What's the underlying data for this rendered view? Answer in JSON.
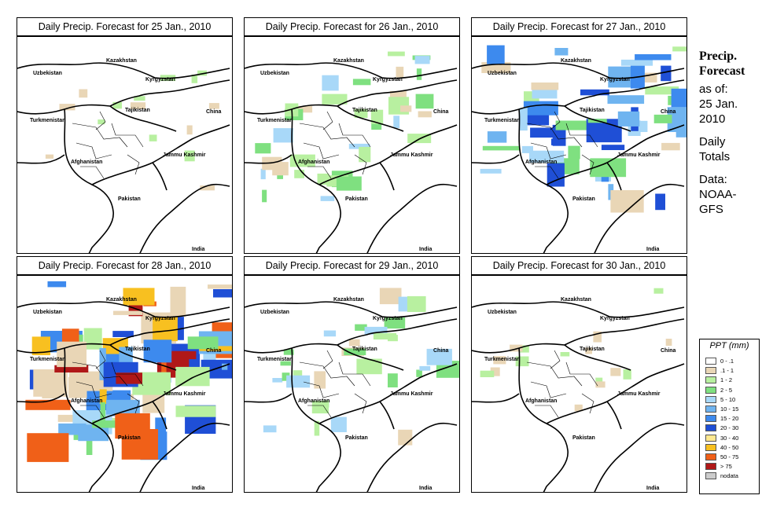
{
  "panels": [
    {
      "title": "Daily Precip. Forecast for  25 Jan., 2010",
      "intensity": 0
    },
    {
      "title": "Daily Precip. Forecast for  26 Jan., 2010",
      "intensity": 1
    },
    {
      "title": "Daily Precip. Forecast for  27 Jan., 2010",
      "intensity": 2
    },
    {
      "title": "Daily Precip. Forecast for  28 Jan., 2010",
      "intensity": 3
    },
    {
      "title": "Daily Precip. Forecast for  29 Jan., 2010",
      "intensity": 1
    },
    {
      "title": "Daily Precip. Forecast for  30 Jan., 2010",
      "intensity": 0
    }
  ],
  "map_labels": {
    "kazakhstan": "Kazakhstan",
    "uzbekistan": "Uzbekistan",
    "kyrgyzstan": "Kyrgyzstan",
    "tajikistan": "Tajikistan",
    "china": "China",
    "turkmenistan": "Turkmenistan",
    "afghanistan": "Afghanistan",
    "jammu_kashmir": "Jammu Kashmir",
    "pakistan": "Pakistan",
    "india": "India"
  },
  "sidebar": {
    "heading_line1": "Precip.",
    "heading_line2": "Forecast",
    "as_of_line1": "as of:",
    "as_of_line2": "25 Jan.",
    "as_of_line3": "2010",
    "totals_line1": "Daily",
    "totals_line2": "Totals",
    "data_line1": "Data:",
    "data_line2": "NOAA-",
    "data_line3": "GFS"
  },
  "legend": {
    "title": "PPT (mm)",
    "items": [
      {
        "label": "0 - .1",
        "color": "#ffffff"
      },
      {
        "label": ".1 - 1",
        "color": "#e9d6b6"
      },
      {
        "label": "1 - 2",
        "color": "#b8f0a0"
      },
      {
        "label": "2 - 5",
        "color": "#7fe080"
      },
      {
        "label": "5 - 10",
        "color": "#a8d8f8"
      },
      {
        "label": "10 - 15",
        "color": "#6fb4f0"
      },
      {
        "label": "15 - 20",
        "color": "#3d8aee"
      },
      {
        "label": "20 - 30",
        "color": "#1f4fd6"
      },
      {
        "label": "30 - 40",
        "color": "#ffe890"
      },
      {
        "label": "40 - 50",
        "color": "#f8c020"
      },
      {
        "label": "50 - 75",
        "color": "#f06018"
      },
      {
        "label": "> 75",
        "color": "#b01818"
      },
      {
        "label": "nodata",
        "color": "#cccccc"
      }
    ]
  }
}
